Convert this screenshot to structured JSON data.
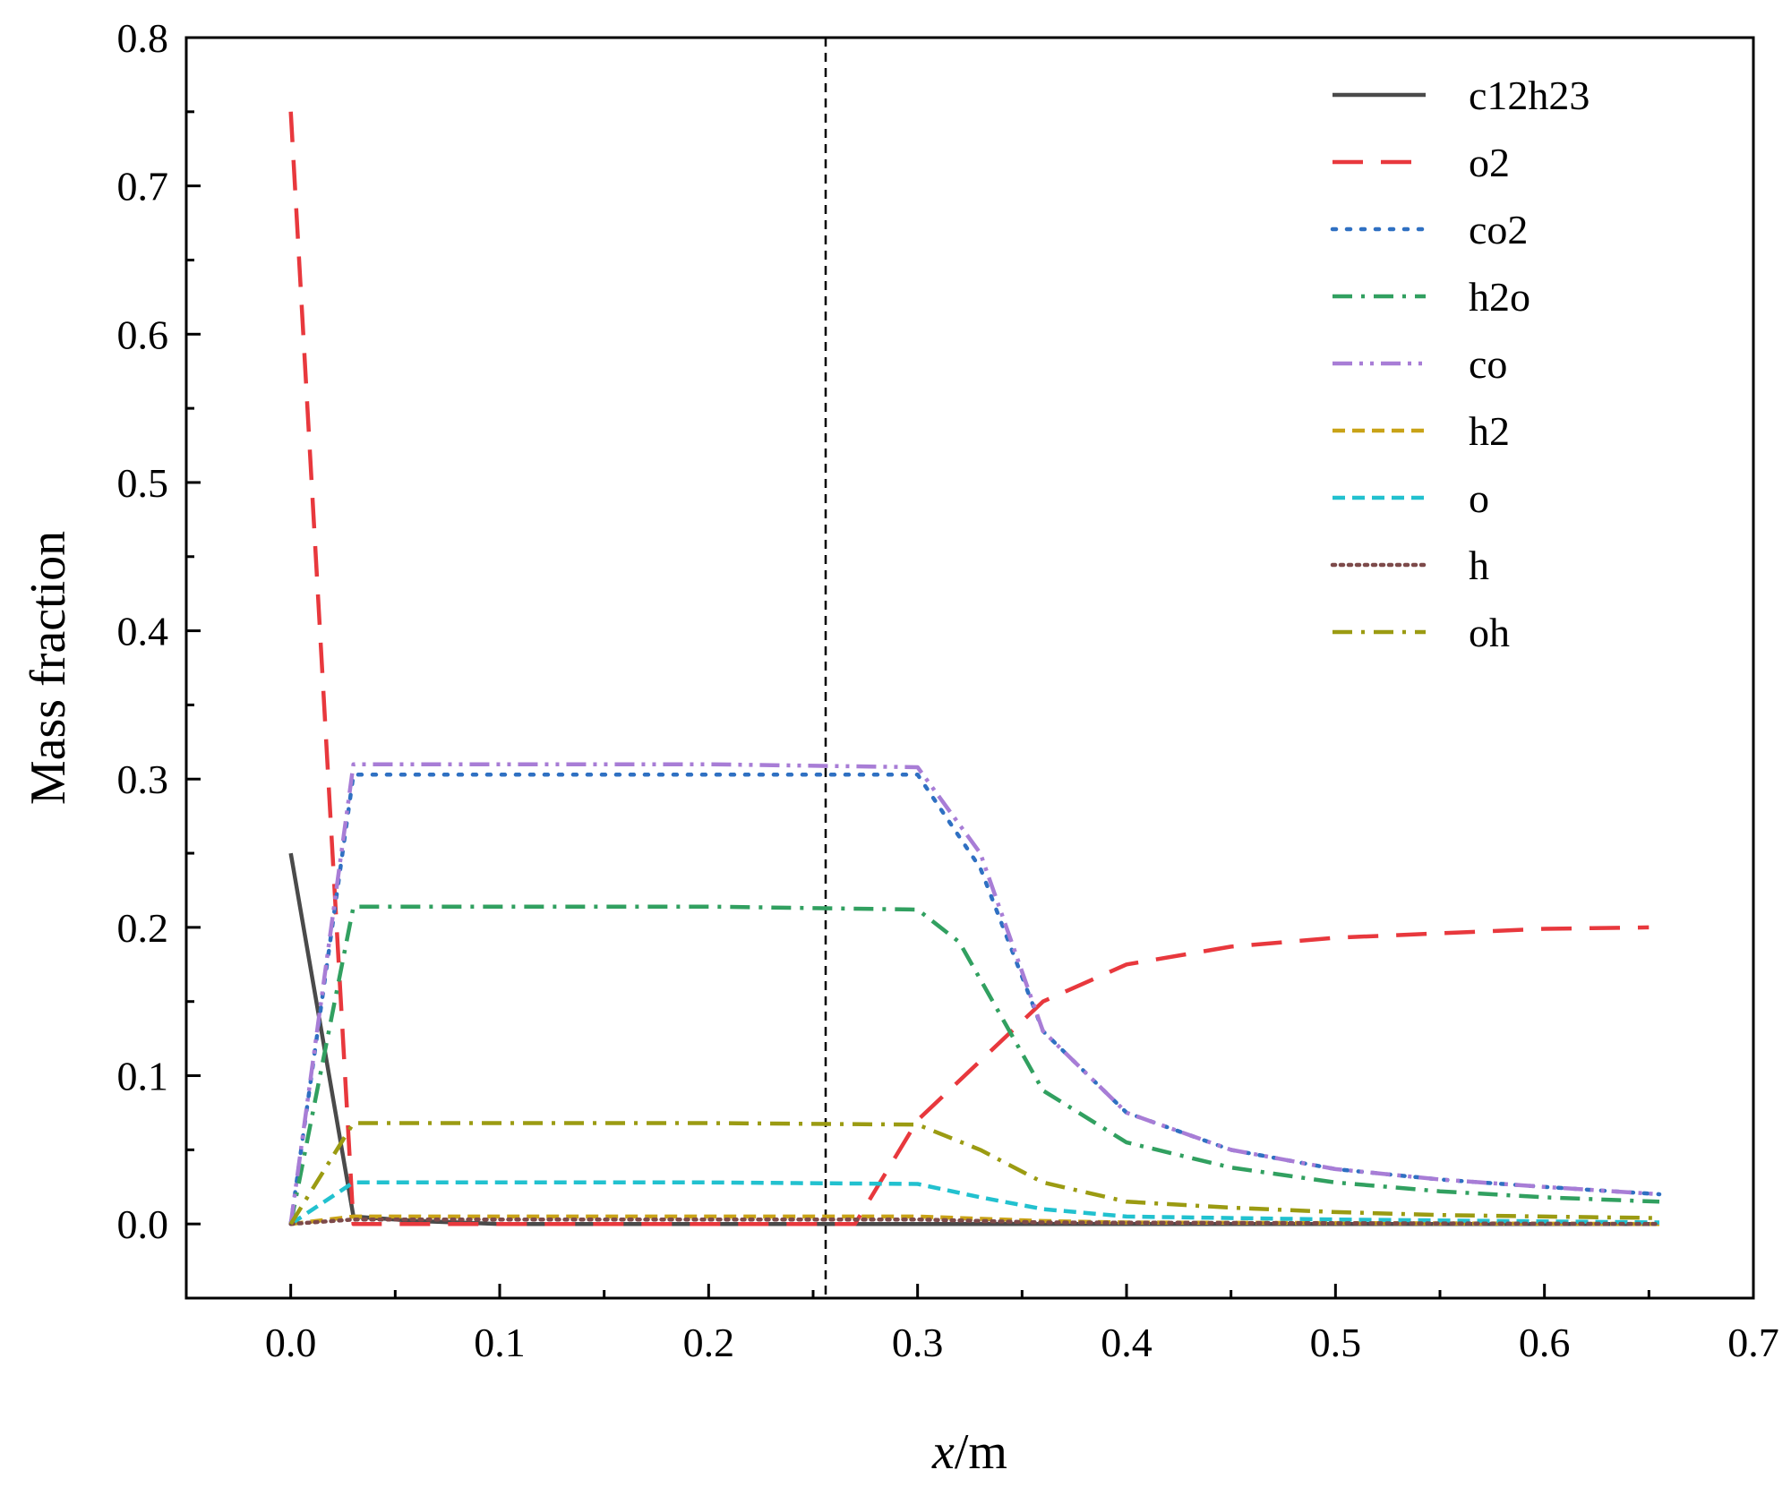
{
  "chart_data": {
    "type": "line",
    "xlabel_italic": "x",
    "xlabel_unit": "/m",
    "ylabel": "Mass fraction",
    "xlim": [
      -0.05,
      0.7
    ],
    "ylim": [
      -0.05,
      0.8
    ],
    "x_ticks": [
      "0.0",
      "0.1",
      "0.2",
      "0.3",
      "0.4",
      "0.5",
      "0.6",
      "0.7"
    ],
    "x_tick_values": [
      0.0,
      0.1,
      0.2,
      0.3,
      0.4,
      0.5,
      0.6,
      0.7
    ],
    "y_ticks": [
      "0.0",
      "0.1",
      "0.2",
      "0.3",
      "0.4",
      "0.5",
      "0.6",
      "0.7",
      "0.8"
    ],
    "y_tick_values": [
      0.0,
      0.1,
      0.2,
      0.3,
      0.4,
      0.5,
      0.6,
      0.7,
      0.8
    ],
    "reference_line_x": 0.256,
    "legend_position": "top-right",
    "series": [
      {
        "name": "c12h23",
        "color": "#4a4a4a",
        "dash": "solid",
        "points": [
          [
            0.0,
            0.25
          ],
          [
            0.03,
            0.005
          ],
          [
            0.06,
            0.002
          ],
          [
            0.1,
            0.0
          ],
          [
            0.655,
            0.0
          ]
        ]
      },
      {
        "name": "o2",
        "color": "#e8383d",
        "dash": "long-dash",
        "points": [
          [
            0.0,
            0.75
          ],
          [
            0.01,
            0.5
          ],
          [
            0.02,
            0.25
          ],
          [
            0.03,
            0.0
          ],
          [
            0.27,
            0.0
          ],
          [
            0.3,
            0.07
          ],
          [
            0.33,
            0.11
          ],
          [
            0.36,
            0.15
          ],
          [
            0.4,
            0.175
          ],
          [
            0.45,
            0.187
          ],
          [
            0.5,
            0.193
          ],
          [
            0.55,
            0.196
          ],
          [
            0.6,
            0.199
          ],
          [
            0.65,
            0.2
          ]
        ]
      },
      {
        "name": "co2",
        "color": "#2f70c2",
        "dash": "dot",
        "points": [
          [
            0.0,
            0.0
          ],
          [
            0.03,
            0.303
          ],
          [
            0.1,
            0.303
          ],
          [
            0.2,
            0.303
          ],
          [
            0.3,
            0.303
          ],
          [
            0.33,
            0.24
          ],
          [
            0.36,
            0.13
          ],
          [
            0.4,
            0.075
          ],
          [
            0.45,
            0.05
          ],
          [
            0.5,
            0.037
          ],
          [
            0.55,
            0.03
          ],
          [
            0.6,
            0.025
          ],
          [
            0.655,
            0.02
          ]
        ]
      },
      {
        "name": "h2o",
        "color": "#31a060",
        "dash": "dash-dot",
        "points": [
          [
            0.0,
            0.0
          ],
          [
            0.03,
            0.214
          ],
          [
            0.1,
            0.214
          ],
          [
            0.2,
            0.214
          ],
          [
            0.3,
            0.212
          ],
          [
            0.32,
            0.19
          ],
          [
            0.36,
            0.09
          ],
          [
            0.4,
            0.055
          ],
          [
            0.45,
            0.038
          ],
          [
            0.5,
            0.028
          ],
          [
            0.55,
            0.022
          ],
          [
            0.6,
            0.018
          ],
          [
            0.655,
            0.015
          ]
        ]
      },
      {
        "name": "co",
        "color": "#a87dd6",
        "dash": "dash-dot-dot",
        "points": [
          [
            0.0,
            0.0
          ],
          [
            0.03,
            0.31
          ],
          [
            0.1,
            0.31
          ],
          [
            0.2,
            0.31
          ],
          [
            0.3,
            0.308
          ],
          [
            0.33,
            0.25
          ],
          [
            0.36,
            0.13
          ],
          [
            0.4,
            0.075
          ],
          [
            0.45,
            0.05
          ],
          [
            0.5,
            0.037
          ],
          [
            0.55,
            0.03
          ],
          [
            0.6,
            0.025
          ],
          [
            0.655,
            0.02
          ]
        ]
      },
      {
        "name": "h2",
        "color": "#c9a317",
        "dash": "short-dash",
        "points": [
          [
            0.0,
            0.0
          ],
          [
            0.03,
            0.005
          ],
          [
            0.3,
            0.005
          ],
          [
            0.36,
            0.002
          ],
          [
            0.4,
            0.001
          ],
          [
            0.655,
            0.0
          ]
        ]
      },
      {
        "name": "o",
        "color": "#22c1cf",
        "dash": "short-dash",
        "points": [
          [
            0.0,
            0.0
          ],
          [
            0.03,
            0.028
          ],
          [
            0.1,
            0.028
          ],
          [
            0.2,
            0.028
          ],
          [
            0.3,
            0.027
          ],
          [
            0.33,
            0.018
          ],
          [
            0.36,
            0.01
          ],
          [
            0.4,
            0.005
          ],
          [
            0.5,
            0.003
          ],
          [
            0.655,
            0.001
          ]
        ]
      },
      {
        "name": "h",
        "color": "#7d4a4a",
        "dash": "dense-dot",
        "points": [
          [
            0.0,
            0.0
          ],
          [
            0.03,
            0.003
          ],
          [
            0.3,
            0.003
          ],
          [
            0.36,
            0.001
          ],
          [
            0.655,
            0.0
          ]
        ]
      },
      {
        "name": "oh",
        "color": "#9b9b12",
        "dash": "dash-dot",
        "points": [
          [
            0.0,
            0.0
          ],
          [
            0.03,
            0.068
          ],
          [
            0.1,
            0.068
          ],
          [
            0.2,
            0.068
          ],
          [
            0.3,
            0.067
          ],
          [
            0.33,
            0.05
          ],
          [
            0.36,
            0.028
          ],
          [
            0.4,
            0.015
          ],
          [
            0.45,
            0.011
          ],
          [
            0.5,
            0.008
          ],
          [
            0.55,
            0.006
          ],
          [
            0.6,
            0.005
          ],
          [
            0.655,
            0.004
          ]
        ]
      }
    ]
  }
}
